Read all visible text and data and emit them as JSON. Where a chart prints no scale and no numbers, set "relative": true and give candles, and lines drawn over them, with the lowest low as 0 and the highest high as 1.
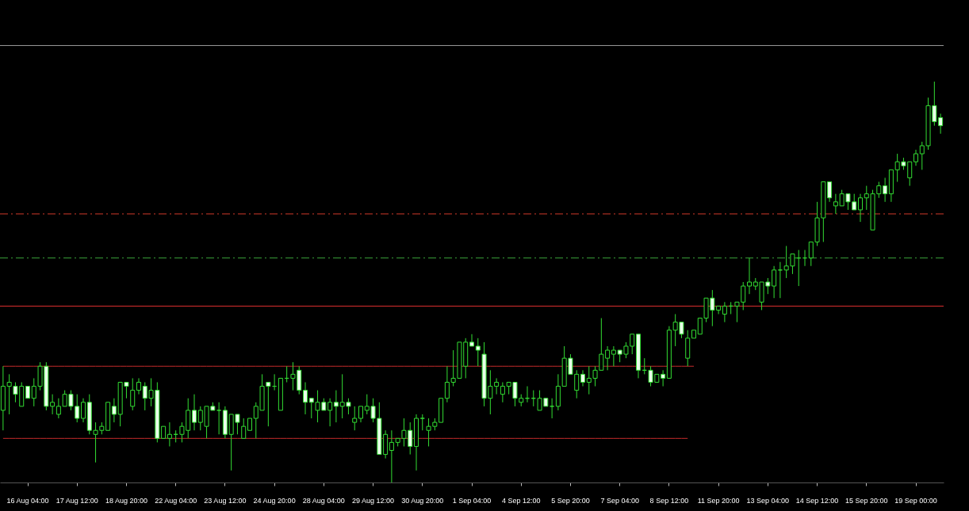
{
  "chart_data": {
    "type": "candlestick",
    "relative": true,
    "color": "#33dd33",
    "categories": [
      null,
      null,
      null,
      null,
      "16 Aug 04:00",
      null,
      null,
      null,
      null,
      null,
      null,
      null,
      "17 Aug 12:00",
      null,
      null,
      null,
      null,
      null,
      null,
      null,
      "18 Aug 20:00",
      null,
      null,
      null,
      null,
      null,
      null,
      null,
      "22 Aug 04:00",
      null,
      null,
      null,
      null,
      null,
      null,
      null,
      "23 Aug 12:00",
      null,
      null,
      null,
      null,
      null,
      null,
      null,
      "24 Aug 20:00",
      null,
      null,
      null,
      null,
      null,
      null,
      null,
      "28 Aug 04:00",
      null,
      null,
      null,
      null,
      null,
      null,
      null,
      "29 Aug 12:00",
      null,
      null,
      null,
      null,
      null,
      null,
      null,
      "30 Aug 20:00",
      null,
      null,
      null,
      null,
      null,
      null,
      null,
      "1 Sep 04:00",
      null,
      null,
      null,
      null,
      null,
      null,
      null,
      "4 Sep 12:00",
      null,
      null,
      null,
      null,
      null,
      null,
      null,
      "5 Sep 20:00",
      null,
      null,
      null,
      null,
      null,
      null,
      null,
      "7 Sep 04:00",
      null,
      null,
      null,
      null,
      null,
      null,
      null,
      "8 Sep 12:00",
      null,
      null,
      null,
      null,
      null,
      null,
      null,
      "11 Sep 20:00",
      null,
      null,
      null,
      null,
      null,
      null,
      null,
      "13 Sep 04:00",
      null,
      null,
      null,
      null,
      null,
      null,
      null,
      "14 Sep 12:00",
      null,
      null,
      null,
      null,
      null,
      null,
      null,
      "15 Sep 20:00",
      null,
      null,
      null,
      null,
      null,
      null,
      null,
      "19 Sep 00:00",
      null,
      null,
      null,
      null
    ],
    "ohlc": [
      [
        0.18,
        0.29,
        0.13,
        0.24
      ],
      [
        0.24,
        0.27,
        0.17,
        0.25
      ],
      [
        0.24,
        0.25,
        0.2,
        0.22
      ],
      [
        0.19,
        0.25,
        0.19,
        0.24
      ],
      [
        0.24,
        0.24,
        0.21,
        0.21
      ],
      [
        0.21,
        0.26,
        0.19,
        0.24
      ],
      [
        0.24,
        0.3,
        0.23,
        0.29
      ],
      [
        0.29,
        0.3,
        0.18,
        0.19
      ],
      [
        0.19,
        0.22,
        0.17,
        0.2
      ],
      [
        0.17,
        0.21,
        0.16,
        0.19
      ],
      [
        0.19,
        0.23,
        0.19,
        0.22
      ],
      [
        0.22,
        0.23,
        0.18,
        0.19
      ],
      [
        0.19,
        0.22,
        0.15,
        0.16
      ],
      [
        0.16,
        0.21,
        0.15,
        0.2
      ],
      [
        0.2,
        0.22,
        0.12,
        0.13
      ],
      [
        0.12,
        0.15,
        0.05,
        0.13
      ],
      [
        0.13,
        0.15,
        0.12,
        0.14
      ],
      [
        0.13,
        0.2,
        0.13,
        0.2
      ],
      [
        0.19,
        0.21,
        0.15,
        0.17
      ],
      [
        0.17,
        0.25,
        0.14,
        0.25
      ],
      [
        0.25,
        0.25,
        0.21,
        0.24
      ],
      [
        0.19,
        0.26,
        0.18,
        0.23
      ],
      [
        0.23,
        0.26,
        0.22,
        0.25
      ],
      [
        0.24,
        0.25,
        0.18,
        0.21
      ],
      [
        0.21,
        0.26,
        0.19,
        0.23
      ],
      [
        0.23,
        0.25,
        0.1,
        0.11
      ],
      [
        0.11,
        0.14,
        0.11,
        0.14
      ],
      [
        0.11,
        0.15,
        0.09,
        0.12
      ],
      [
        0.12,
        0.13,
        0.1,
        0.12
      ],
      [
        0.12,
        0.15,
        0.1,
        0.14
      ],
      [
        0.13,
        0.21,
        0.11,
        0.18
      ],
      [
        0.18,
        0.22,
        0.13,
        0.15
      ],
      [
        0.15,
        0.19,
        0.13,
        0.18
      ],
      [
        0.14,
        0.19,
        0.11,
        0.19
      ],
      [
        0.19,
        0.2,
        0.18,
        0.18
      ],
      [
        0.18,
        0.2,
        0.12,
        0.18
      ],
      [
        0.18,
        0.19,
        0.11,
        0.12
      ],
      [
        0.12,
        0.17,
        0.03,
        0.17
      ],
      [
        0.17,
        0.17,
        0.12,
        0.15
      ],
      [
        0.11,
        0.16,
        0.11,
        0.14
      ],
      [
        0.13,
        0.16,
        0.13,
        0.16
      ],
      [
        0.16,
        0.2,
        0.11,
        0.19
      ],
      [
        0.18,
        0.27,
        0.18,
        0.24
      ],
      [
        0.25,
        0.25,
        0.14,
        0.24
      ],
      [
        0.24,
        0.27,
        0.23,
        0.24
      ],
      [
        0.18,
        0.26,
        0.18,
        0.26
      ],
      [
        0.26,
        0.29,
        0.25,
        0.26
      ],
      [
        0.26,
        0.3,
        0.23,
        0.27
      ],
      [
        0.28,
        0.29,
        0.22,
        0.23
      ],
      [
        0.23,
        0.25,
        0.17,
        0.2
      ],
      [
        0.21,
        0.21,
        0.16,
        0.2
      ],
      [
        0.18,
        0.23,
        0.15,
        0.2
      ],
      [
        0.2,
        0.21,
        0.18,
        0.18
      ],
      [
        0.18,
        0.21,
        0.14,
        0.2
      ],
      [
        0.2,
        0.23,
        0.15,
        0.19
      ],
      [
        0.19,
        0.27,
        0.16,
        0.2
      ],
      [
        0.2,
        0.21,
        0.17,
        0.19
      ],
      [
        0.15,
        0.19,
        0.13,
        0.16
      ],
      [
        0.16,
        0.19,
        0.15,
        0.19
      ],
      [
        0.18,
        0.22,
        0.17,
        0.19
      ],
      [
        0.19,
        0.21,
        0.15,
        0.16
      ],
      [
        0.16,
        0.2,
        0.07,
        0.07
      ],
      [
        0.07,
        0.13,
        0.06,
        0.12
      ],
      [
        0.08,
        0.13,
        0,
        0.1
      ],
      [
        0.1,
        0.11,
        0.09,
        0.11
      ],
      [
        0.11,
        0.16,
        0.09,
        0.13
      ],
      [
        0.13,
        0.15,
        0.07,
        0.09
      ],
      [
        0.09,
        0.17,
        0.03,
        0.16
      ],
      [
        0.16,
        0.17,
        0.13,
        0.16
      ],
      [
        0.13,
        0.16,
        0.09,
        0.14
      ],
      [
        0.14,
        0.16,
        0.13,
        0.15
      ],
      [
        0.15,
        0.21,
        0.15,
        0.21
      ],
      [
        0.21,
        0.29,
        0.2,
        0.25
      ],
      [
        0.25,
        0.33,
        0.24,
        0.26
      ],
      [
        0.26,
        0.35,
        0.26,
        0.35
      ],
      [
        0.29,
        0.36,
        0.26,
        0.35
      ],
      [
        0.35,
        0.37,
        0.34,
        0.34
      ],
      [
        0.34,
        0.36,
        0.29,
        0.33
      ],
      [
        0.32,
        0.35,
        0.19,
        0.21
      ],
      [
        0.21,
        0.28,
        0.17,
        0.24
      ],
      [
        0.24,
        0.26,
        0.22,
        0.25
      ],
      [
        0.22,
        0.25,
        0.2,
        0.24
      ],
      [
        0.24,
        0.25,
        0.22,
        0.25
      ],
      [
        0.25,
        0.25,
        0.19,
        0.21
      ],
      [
        0.2,
        0.22,
        0.19,
        0.21
      ],
      [
        0.21,
        0.24,
        0.2,
        0.21
      ],
      [
        0.21,
        0.23,
        0.19,
        0.21
      ],
      [
        0.18,
        0.23,
        0.18,
        0.21
      ],
      [
        0.21,
        0.21,
        0.19,
        0.19
      ],
      [
        0.19,
        0.21,
        0.16,
        0.19
      ],
      [
        0.19,
        0.27,
        0.18,
        0.24
      ],
      [
        0.24,
        0.34,
        0.24,
        0.31
      ],
      [
        0.31,
        0.32,
        0.27,
        0.27
      ],
      [
        0.23,
        0.28,
        0.21,
        0.27
      ],
      [
        0.27,
        0.28,
        0.24,
        0.25
      ],
      [
        0.25,
        0.29,
        0.22,
        0.26
      ],
      [
        0.26,
        0.29,
        0.24,
        0.28
      ],
      [
        0.28,
        0.41,
        0.28,
        0.32
      ],
      [
        0.31,
        0.34,
        0.28,
        0.33
      ],
      [
        0.32,
        0.34,
        0.29,
        0.33
      ],
      [
        0.33,
        0.33,
        0.3,
        0.32
      ],
      [
        0.32,
        0.35,
        0.31,
        0.34
      ],
      [
        0.34,
        0.37,
        0.32,
        0.37
      ],
      [
        0.37,
        0.37,
        0.26,
        0.28
      ],
      [
        0.28,
        0.31,
        0.27,
        0.28
      ],
      [
        0.28,
        0.29,
        0.24,
        0.25
      ],
      [
        0.25,
        0.27,
        0.25,
        0.27
      ],
      [
        0.27,
        0.28,
        0.24,
        0.26
      ],
      [
        0.26,
        0.39,
        0.26,
        0.38
      ],
      [
        0.38,
        0.42,
        0.34,
        0.4
      ],
      [
        0.4,
        0.4,
        0.36,
        0.37
      ],
      [
        0.31,
        0.38,
        0.29,
        0.36
      ],
      [
        0.36,
        0.38,
        0.36,
        0.38
      ],
      [
        0.37,
        0.41,
        0.37,
        0.41
      ],
      [
        0.41,
        0.46,
        0.4,
        0.46
      ],
      [
        0.46,
        0.48,
        0.39,
        0.43
      ],
      [
        0.43,
        0.44,
        0.42,
        0.44
      ],
      [
        0.42,
        0.45,
        0.4,
        0.44
      ],
      [
        0.44,
        0.45,
        0.42,
        0.44
      ],
      [
        0.44,
        0.45,
        0.4,
        0.45
      ],
      [
        0.45,
        0.5,
        0.43,
        0.49
      ],
      [
        0.49,
        0.56,
        0.47,
        0.5
      ],
      [
        0.49,
        0.51,
        0.48,
        0.5
      ],
      [
        0.45,
        0.5,
        0.43,
        0.5
      ],
      [
        0.5,
        0.51,
        0.47,
        0.49
      ],
      [
        0.49,
        0.54,
        0.46,
        0.53
      ],
      [
        0.53,
        0.55,
        0.46,
        0.53
      ],
      [
        0.53,
        0.59,
        0.51,
        0.54
      ],
      [
        0.54,
        0.57,
        0.52,
        0.57
      ],
      [
        0.56,
        0.58,
        0.49,
        0.56
      ],
      [
        0.56,
        0.58,
        0.54,
        0.56
      ],
      [
        0.56,
        0.6,
        0.54,
        0.6
      ],
      [
        0.6,
        0.7,
        0.59,
        0.66
      ],
      [
        0.66,
        0.75,
        0.6,
        0.75
      ],
      [
        0.75,
        0.75,
        0.7,
        0.71
      ],
      [
        0.69,
        0.72,
        0.67,
        0.7
      ],
      [
        0.69,
        0.73,
        0.69,
        0.72
      ],
      [
        0.72,
        0.72,
        0.68,
        0.7
      ],
      [
        0.7,
        0.72,
        0.68,
        0.68
      ],
      [
        0.68,
        0.72,
        0.65,
        0.71
      ],
      [
        0.71,
        0.74,
        0.68,
        0.72
      ],
      [
        0.63,
        0.73,
        0.63,
        0.72
      ],
      [
        0.72,
        0.75,
        0.71,
        0.74
      ],
      [
        0.74,
        0.76,
        0.7,
        0.72
      ],
      [
        0.72,
        0.78,
        0.7,
        0.78
      ],
      [
        0.78,
        0.82,
        0.75,
        0.8
      ],
      [
        0.8,
        0.81,
        0.78,
        0.79
      ],
      [
        0.76,
        0.8,
        0.74,
        0.8
      ],
      [
        0.8,
        0.83,
        0.79,
        0.82
      ],
      [
        0.82,
        0.85,
        0.78,
        0.84
      ],
      [
        0.84,
        0.96,
        0.83,
        0.94
      ],
      [
        0.94,
        1,
        0.89,
        0.9
      ],
      [
        0.91,
        0.92,
        0.87,
        0.89
      ]
    ],
    "series": [
      {
        "type": "line",
        "color": "#c42b2b",
        "values": [
          0.29,
          0.29,
          0.29,
          0.29,
          0.29,
          0.29,
          0.29,
          0.29,
          0.29,
          0.29,
          0.29,
          0.29,
          0.29,
          0.29,
          0.29,
          0.29,
          0.29,
          0.29,
          0.29,
          0.29,
          0.29,
          0.29,
          0.29,
          0.29,
          0.29,
          0.29,
          0.29,
          0.29,
          0.29,
          0.29,
          0.29,
          0.29,
          0.29,
          0.29,
          0.29,
          0.29,
          0.29,
          0.29,
          0.29,
          0.29,
          0.29,
          0.29,
          0.29,
          0.29,
          0.29,
          0.29,
          0.29,
          0.29,
          0.29,
          0.29,
          0.29,
          0.29,
          0.29,
          0.29,
          0.29,
          0.29,
          0.29,
          0.29,
          0.29,
          0.29,
          0.29,
          0.29,
          0.29,
          0.29,
          0.29,
          0.29,
          0.29,
          0.29,
          0.29,
          0.29,
          0.29,
          0.29,
          0.29,
          0.29,
          0.29,
          0.29,
          0.29,
          0.29,
          0.29,
          0.29,
          0.29,
          0.29,
          0.29,
          0.29,
          0.29,
          0.29,
          0.29,
          0.29,
          0.29,
          0.29,
          0.29,
          0.29,
          0.29,
          0.29,
          0.29,
          0.29,
          0.29,
          0.29,
          0.29,
          0.29,
          0.29,
          0.29,
          0.29,
          0.29,
          0.29,
          0.29,
          0.29,
          0.29,
          0.29,
          0.29,
          0.29,
          0.29,
          0.29,
          null,
          null,
          null,
          null,
          null,
          null,
          null,
          null,
          null,
          null,
          null,
          null,
          null,
          null,
          null,
          null,
          null,
          null,
          null,
          null,
          null,
          null,
          null,
          null,
          null,
          null,
          null,
          null,
          null,
          null,
          null,
          null,
          null,
          null,
          null,
          null,
          null,
          null,
          null,
          null
        ]
      },
      {
        "type": "line",
        "color": "#c42b2b",
        "values": [
          0.11,
          0.11,
          0.11,
          0.11,
          0.11,
          0.11,
          0.11,
          0.11,
          0.11,
          0.11,
          0.11,
          0.11,
          0.11,
          0.11,
          0.11,
          0.11,
          0.11,
          0.11,
          0.11,
          0.11,
          0.11,
          0.11,
          0.11,
          0.11,
          0.11,
          0.11,
          0.11,
          0.11,
          0.11,
          0.11,
          0.11,
          0.11,
          0.11,
          0.11,
          0.11,
          0.11,
          0.11,
          0.11,
          0.11,
          0.11,
          0.11,
          0.11,
          0.11,
          0.11,
          0.11,
          0.11,
          0.11,
          0.11,
          0.11,
          0.11,
          0.11,
          0.11,
          0.11,
          0.11,
          0.11,
          0.11,
          0.11,
          0.11,
          0.11,
          0.11,
          0.11,
          0.11,
          0.11,
          0.11,
          0.11,
          0.11,
          0.11,
          0.11,
          0.11,
          0.11,
          0.11,
          0.11,
          0.11,
          0.11,
          0.11,
          0.11,
          0.11,
          0.11,
          0.11,
          0.11,
          0.11,
          0.11,
          0.11,
          0.11,
          0.11,
          0.11,
          0.11,
          0.11,
          0.11,
          0.11,
          0.11,
          0.11,
          0.11,
          0.11,
          0.11,
          0.11,
          0.11,
          0.11,
          0.11,
          0.11,
          0.11,
          0.11,
          0.11,
          0.11,
          0.11,
          0.11,
          0.11,
          0.11,
          0.11,
          0.11,
          0.11,
          0.11,
          null,
          null,
          null,
          null,
          null,
          null,
          null,
          null,
          null,
          null,
          null,
          null,
          null,
          null,
          null,
          null,
          null,
          null,
          null,
          null,
          null,
          null,
          null,
          null,
          null,
          null,
          null,
          null,
          null,
          null,
          null,
          null,
          null,
          null,
          null,
          null,
          null,
          null,
          null,
          null,
          null
        ]
      }
    ],
    "ref_lines": [
      {
        "axis": "y",
        "value": 1.09,
        "color": "#9a9a9a",
        "line_style": "solid"
      },
      {
        "axis": "y",
        "value": 0.67,
        "color": "#d03a2a",
        "line_style": "dashed"
      },
      {
        "axis": "y",
        "value": 0.56,
        "color": "#3aa03a",
        "line_style": "dashed"
      },
      {
        "axis": "y",
        "value": 0.44,
        "color": "#e03030",
        "line_style": "solid"
      }
    ]
  }
}
